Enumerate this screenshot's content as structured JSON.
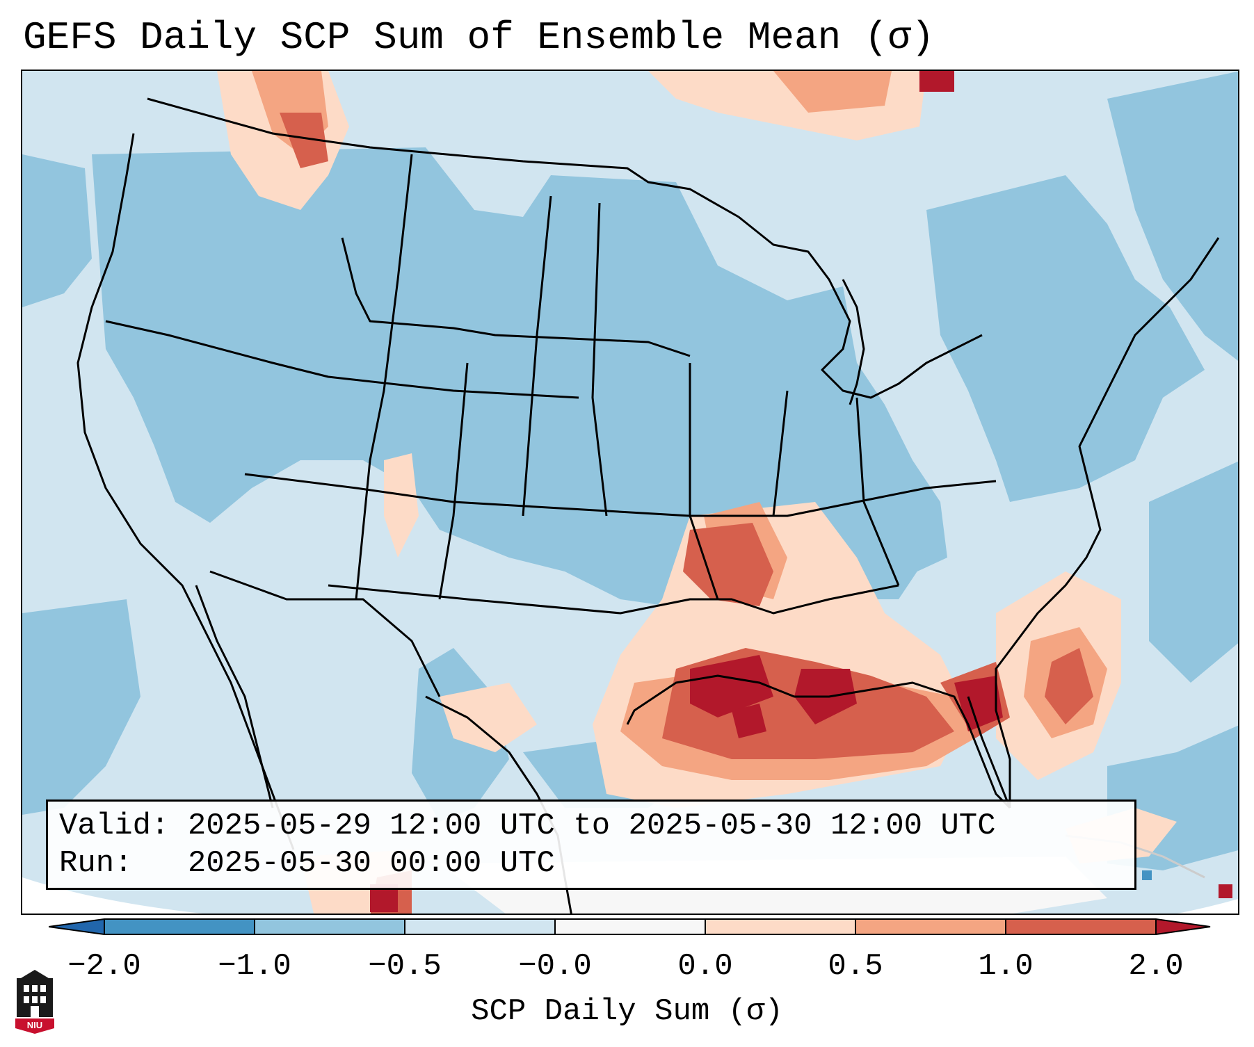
{
  "title": "GEFS Daily SCP Sum of Ensemble Mean (σ)",
  "info": {
    "valid_line": "Valid: 2025-05-29 12:00 UTC to 2025-05-30 12:00 UTC",
    "run_line": "Run:   2025-05-30 00:00 UTC"
  },
  "colorbar": {
    "label": "SCP Daily Sum (σ)",
    "ticks": [
      "−2.0",
      "−1.0",
      "−0.5",
      "−0.0",
      "0.0",
      "0.5",
      "1.0",
      "2.0"
    ],
    "colors": [
      "#4393c3",
      "#92c5de",
      "#d1e5f0",
      "#f7f7f7",
      "#fddbc7",
      "#f4a582",
      "#d6604d"
    ],
    "under_color": "#2166ac",
    "over_color": "#b2182b"
  },
  "palette": {
    "bg": "#d1e5f0",
    "mid_blue": "#92c5de",
    "dark_blue": "#4393c3",
    "light_red": "#fddbc7",
    "mid_red": "#f4a582",
    "red": "#d6604d",
    "dark_red": "#b2182b",
    "white": "#f7f7f7"
  },
  "logo": {
    "text": "NIU",
    "color": "#c8102e"
  }
}
